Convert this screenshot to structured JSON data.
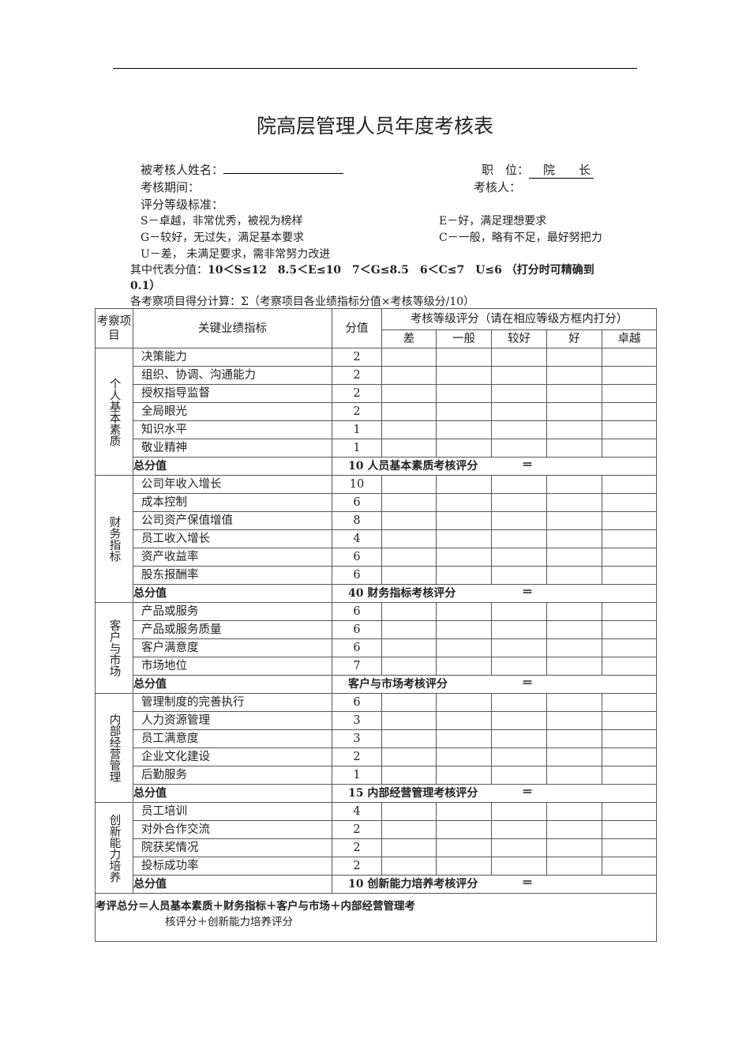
{
  "title": "院高层管理人员年度考核表",
  "fields": {
    "name_label": "被考核人姓名：",
    "position_label": "职　位：",
    "position_value": "院　　长",
    "period_label": "考核期间：",
    "assessor_label": "考核人："
  },
  "criteria": {
    "heading": "评分等级标准：",
    "S": "S－卓越，非常优秀，被视为榜样",
    "E": "E－好，满足理想要求",
    "G": "G－较好，无过失，满足基本要求",
    "C": "C－一般，略有不足，最好努把力",
    "U": "U－差， 未满足要求，需非常努力改进",
    "scores_label": "其中代表分值：",
    "scores": "10＜S≤12　8.5＜E≤10　7＜G≤8.5　6＜C≤7　U≤6 （打分时可精确到",
    "scores_cont": "0.1）",
    "formula": "各考察项目得分计算：Σ（考察项目各业绩指标分值×考核等级分/10）"
  },
  "table": {
    "headers": {
      "category": "考察项目",
      "indicator": "关键业绩指标",
      "score": "分值",
      "grading": "考核等级评分（请在相应等级方框内打分）",
      "grades": [
        "差",
        "一般",
        "较好",
        "好",
        "卓越"
      ]
    },
    "total_label": "总分值",
    "equals": "＝",
    "sections": [
      {
        "category": "个人基本素质",
        "items": [
          {
            "name": "决策能力",
            "score": "2"
          },
          {
            "name": "组织、协调、沟通能力",
            "score": "2"
          },
          {
            "name": "授权指导监督",
            "score": "2"
          },
          {
            "name": "全局眼光",
            "score": "2"
          },
          {
            "name": "知识水平",
            "score": "1"
          },
          {
            "name": "敬业精神",
            "score": "1"
          }
        ],
        "total": "10",
        "total_text": "人员基本素质考核评分"
      },
      {
        "category": "财务指标",
        "items": [
          {
            "name": "公司年收入增长",
            "score": "10"
          },
          {
            "name": "成本控制",
            "score": "6"
          },
          {
            "name": "公司资产保值增值",
            "score": "8"
          },
          {
            "name": "员工收入增长",
            "score": "4"
          },
          {
            "name": "资产收益率",
            "score": "6"
          },
          {
            "name": "股东报酬率",
            "score": "6"
          }
        ],
        "total": "40",
        "total_text": "财务指标考核评分"
      },
      {
        "category": "客户与市场",
        "items": [
          {
            "name": "产品或服务",
            "score": "6"
          },
          {
            "name": "产品或服务质量",
            "score": "6"
          },
          {
            "name": "客户满意度",
            "score": "6"
          },
          {
            "name": "市场地位",
            "score": "7"
          }
        ],
        "total": "",
        "total_text": "客户与市场考核评分"
      },
      {
        "category": "内部经营管理",
        "items": [
          {
            "name": "管理制度的完善执行",
            "score": "6"
          },
          {
            "name": "人力资源管理",
            "score": "3"
          },
          {
            "name": "员工满意度",
            "score": "3"
          },
          {
            "name": "企业文化建设",
            "score": "2"
          },
          {
            "name": "后勤服务",
            "score": "1"
          }
        ],
        "total": "15",
        "total_text": "内部经营管理考核评分"
      },
      {
        "category": "创新能力培养",
        "items": [
          {
            "name": "员工培训",
            "score": "4"
          },
          {
            "name": "对外合作交流",
            "score": "2"
          },
          {
            "name": "院获奖情况",
            "score": "2"
          },
          {
            "name": "投标成功率",
            "score": "2"
          }
        ],
        "total": "10",
        "total_text": "创新能力培养考核评分"
      }
    ],
    "final_line1": "考评总分＝人员基本素质＋财务指标＋客户与市场＋内部经营管理考",
    "final_line2": "核评分＋创新能力培养评分"
  }
}
